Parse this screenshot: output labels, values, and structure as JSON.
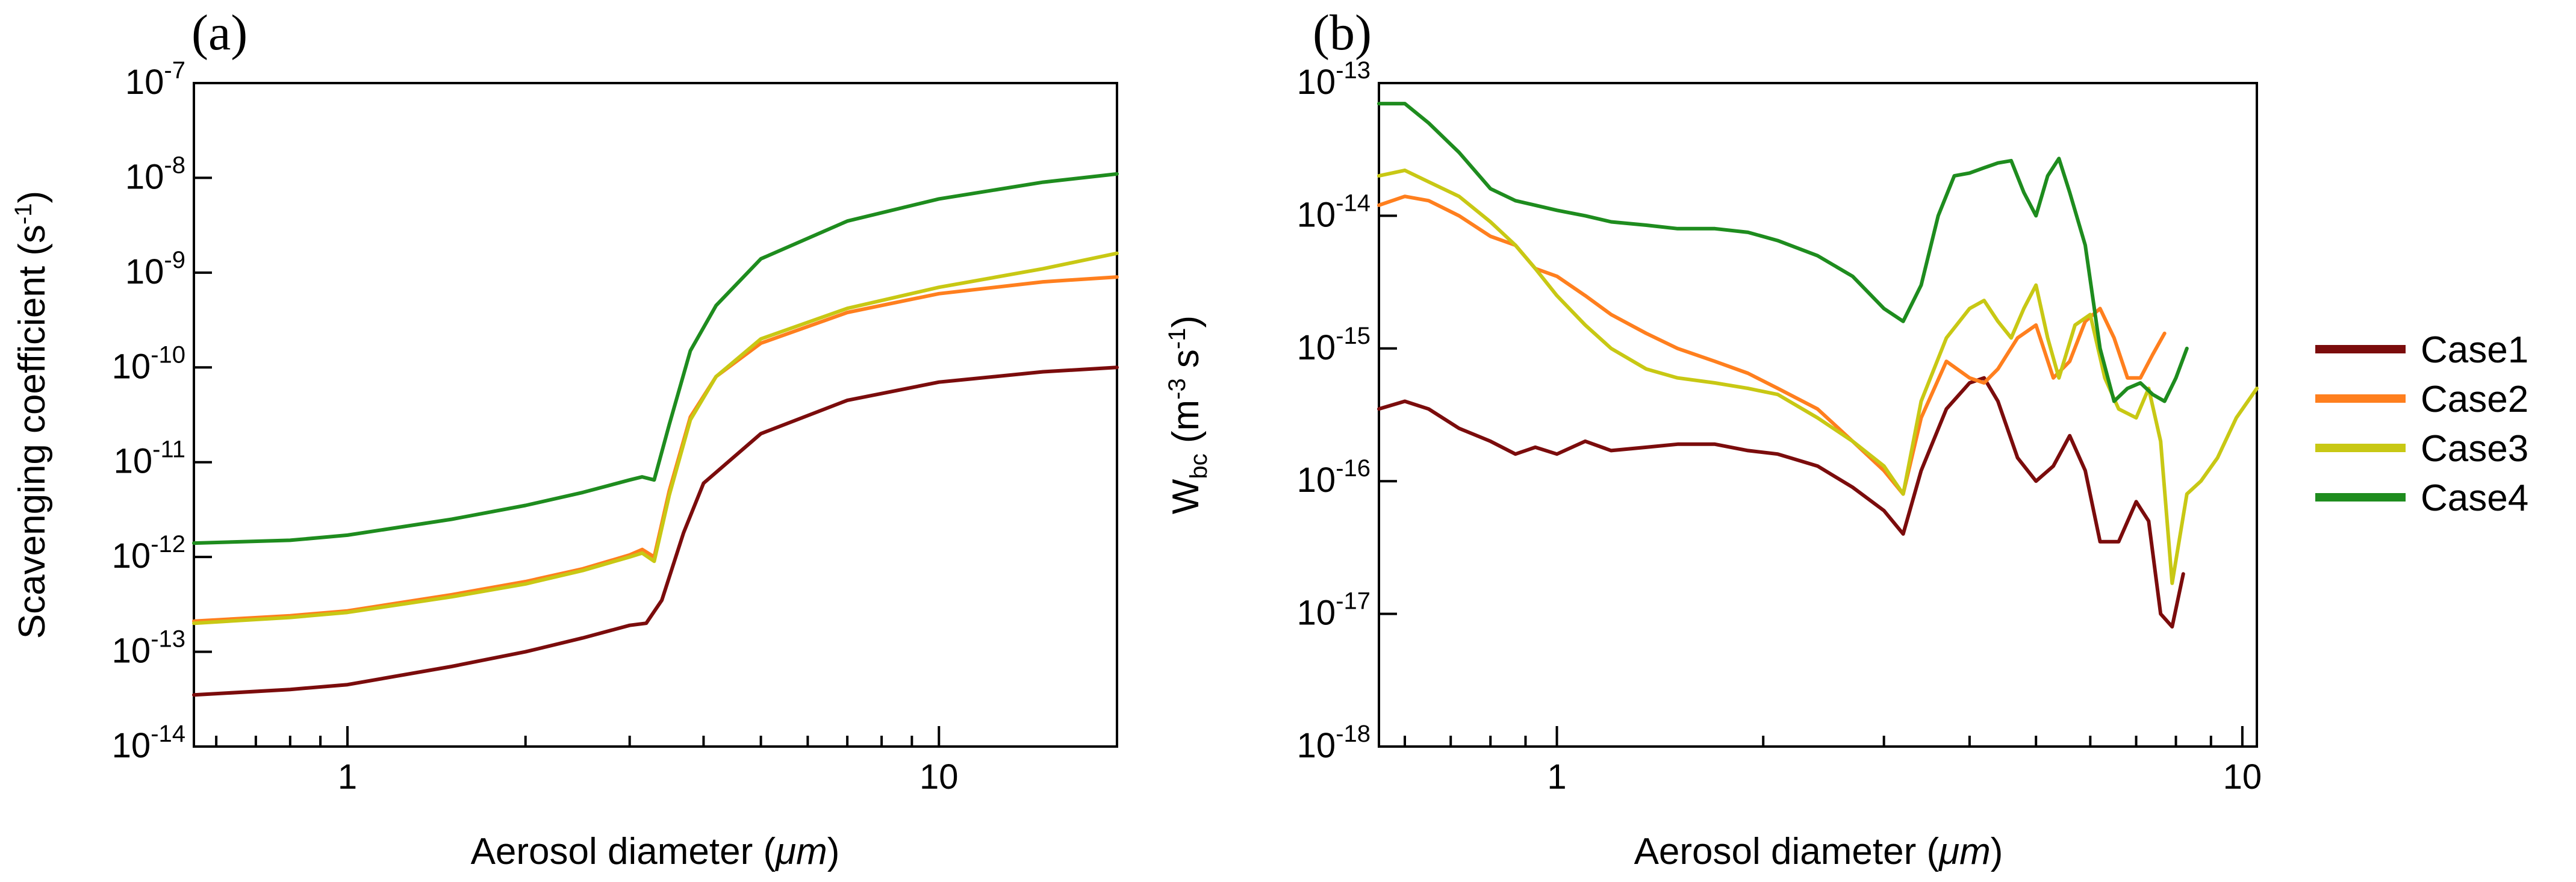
{
  "chart_data": [
    {
      "panel": "(a)",
      "type": "line",
      "xscale": "log",
      "yscale": "log",
      "xlim": [
        0.55,
        20
      ],
      "ylim": [
        1e-14,
        1e-07
      ],
      "xlabel_main": "Aerosol diameter (",
      "xlabel_unit": "μm",
      "xlabel_end": ")",
      "ylabel_main": "Scavenging coefficient (s",
      "ylabel_sup": "-1",
      "ylabel_end": ")",
      "x_ticks": [
        {
          "value": 1,
          "label": "1"
        },
        {
          "value": 10,
          "label": "10"
        }
      ],
      "y_ticks": [
        {
          "exp": -14,
          "base": "10",
          "sup": "-14"
        },
        {
          "exp": -13,
          "base": "10",
          "sup": "-13"
        },
        {
          "exp": -12,
          "base": "10",
          "sup": "-12"
        },
        {
          "exp": -11,
          "base": "10",
          "sup": "-11"
        },
        {
          "exp": -10,
          "base": "10",
          "sup": "-10"
        },
        {
          "exp": -9,
          "base": "10",
          "sup": "-9"
        },
        {
          "exp": -8,
          "base": "10",
          "sup": "-8"
        },
        {
          "exp": -7,
          "base": "10",
          "sup": "-7"
        }
      ],
      "series": [
        {
          "name": "Case1",
          "color": "#7b0c0c",
          "x": [
            0.55,
            0.8,
            1.0,
            1.5,
            2.0,
            2.5,
            3.0,
            3.2,
            3.4,
            3.7,
            4.0,
            5.0,
            7.0,
            10.0,
            15.0,
            20.0
          ],
          "y": [
            3.5e-14,
            4e-14,
            4.5e-14,
            7e-14,
            1e-13,
            1.4e-13,
            1.9e-13,
            2e-13,
            3.5e-13,
            1.8e-12,
            6e-12,
            2e-11,
            4.5e-11,
            7e-11,
            9e-11,
            1e-10
          ]
        },
        {
          "name": "Case2",
          "color": "#ff7f1e",
          "x": [
            0.55,
            0.8,
            1.0,
            1.5,
            2.0,
            2.5,
            3.0,
            3.15,
            3.3,
            3.5,
            3.8,
            4.2,
            5.0,
            7.0,
            10.0,
            15.0,
            20.0
          ],
          "y": [
            2.1e-13,
            2.4e-13,
            2.7e-13,
            4e-13,
            5.5e-13,
            7.5e-13,
            1.05e-12,
            1.2e-12,
            1e-12,
            5e-12,
            3e-11,
            8e-11,
            1.8e-10,
            3.8e-10,
            6e-10,
            8e-10,
            9e-10
          ]
        },
        {
          "name": "Case3",
          "color": "#c8c814",
          "x": [
            0.55,
            0.8,
            1.0,
            1.5,
            2.0,
            2.5,
            3.0,
            3.15,
            3.3,
            3.5,
            3.8,
            4.2,
            5.0,
            7.0,
            10.0,
            15.0,
            20.0
          ],
          "y": [
            2e-13,
            2.3e-13,
            2.6e-13,
            3.8e-13,
            5.2e-13,
            7.2e-13,
            1e-12,
            1.1e-12,
            9e-13,
            4.5e-12,
            2.8e-11,
            8e-11,
            2e-10,
            4.2e-10,
            7e-10,
            1.1e-09,
            1.6e-09
          ]
        },
        {
          "name": "Case4",
          "color": "#1e8c1e",
          "x": [
            0.55,
            0.8,
            1.0,
            1.5,
            2.0,
            2.5,
            3.0,
            3.15,
            3.3,
            3.5,
            3.8,
            4.2,
            5.0,
            7.0,
            10.0,
            15.0,
            20.0
          ],
          "y": [
            1.4e-12,
            1.5e-12,
            1.7e-12,
            2.5e-12,
            3.5e-12,
            4.8e-12,
            6.5e-12,
            7e-12,
            6.5e-12,
            2.5e-11,
            1.5e-10,
            4.5e-10,
            1.4e-09,
            3.5e-09,
            6e-09,
            9e-09,
            1.1e-08
          ]
        }
      ]
    },
    {
      "panel": "(b)",
      "type": "line",
      "xscale": "log",
      "yscale": "log",
      "xlim": [
        0.55,
        10.5
      ],
      "ylim": [
        1e-18,
        1e-13
      ],
      "xlabel_main": "Aerosol diameter (",
      "xlabel_unit": "μm",
      "xlabel_end": ")",
      "ylabel_main": "W",
      "ylabel_sub": "bc",
      "ylabel_mid": " (m",
      "ylabel_sup1": "-3",
      "ylabel_mid2": " s",
      "ylabel_sup2": "-1",
      "ylabel_end": ")",
      "x_ticks": [
        {
          "value": 1,
          "label": "1"
        },
        {
          "value": 10,
          "label": "10"
        }
      ],
      "y_ticks": [
        {
          "exp": -18,
          "base": "10",
          "sup": "-18"
        },
        {
          "exp": -17,
          "base": "10",
          "sup": "-17"
        },
        {
          "exp": -16,
          "base": "10",
          "sup": "-16"
        },
        {
          "exp": -15,
          "base": "10",
          "sup": "-15"
        },
        {
          "exp": -14,
          "base": "10",
          "sup": "-14"
        },
        {
          "exp": -13,
          "base": "10",
          "sup": "-13"
        }
      ],
      "series": [
        {
          "name": "Case1",
          "color": "#7b0c0c",
          "x": [
            0.55,
            0.6,
            0.65,
            0.72,
            0.8,
            0.87,
            0.93,
            1.0,
            1.1,
            1.2,
            1.35,
            1.5,
            1.7,
            1.9,
            2.1,
            2.4,
            2.7,
            3.0,
            3.2,
            3.4,
            3.7,
            4.0,
            4.2,
            4.4,
            4.7,
            5.0,
            5.3,
            5.6,
            5.9,
            6.2,
            6.6,
            7.0,
            7.3,
            7.6,
            7.9,
            8.2
          ],
          "y": [
            3.5e-16,
            4e-16,
            3.5e-16,
            2.5e-16,
            2e-16,
            1.6e-16,
            1.8e-16,
            1.6e-16,
            2e-16,
            1.7e-16,
            1.8e-16,
            1.9e-16,
            1.9e-16,
            1.7e-16,
            1.6e-16,
            1.3e-16,
            9e-17,
            6e-17,
            4e-17,
            1.2e-16,
            3.5e-16,
            5.5e-16,
            6e-16,
            4e-16,
            1.5e-16,
            1e-16,
            1.3e-16,
            2.2e-16,
            1.2e-16,
            3.5e-17,
            3.5e-17,
            7e-17,
            5e-17,
            1e-17,
            8e-18,
            2e-17
          ]
        },
        {
          "name": "Case2",
          "color": "#ff7f1e",
          "x": [
            0.55,
            0.6,
            0.65,
            0.72,
            0.8,
            0.87,
            0.93,
            1.0,
            1.1,
            1.2,
            1.35,
            1.5,
            1.7,
            1.9,
            2.1,
            2.4,
            2.7,
            3.0,
            3.2,
            3.4,
            3.7,
            4.0,
            4.2,
            4.4,
            4.7,
            5.0,
            5.3,
            5.6,
            5.9,
            6.2,
            6.5,
            6.8,
            7.1,
            7.4,
            7.7
          ],
          "y": [
            1.2e-14,
            1.4e-14,
            1.3e-14,
            1e-14,
            7e-15,
            6e-15,
            4e-15,
            3.5e-15,
            2.5e-15,
            1.8e-15,
            1.3e-15,
            1e-15,
            8e-16,
            6.5e-16,
            5e-16,
            3.5e-16,
            2e-16,
            1.2e-16,
            8e-17,
            3e-16,
            8e-16,
            6e-16,
            5.5e-16,
            7e-16,
            1.2e-15,
            1.5e-15,
            6e-16,
            8e-16,
            1.6e-15,
            2e-15,
            1.2e-15,
            6e-16,
            6e-16,
            9e-16,
            1.3e-15
          ]
        },
        {
          "name": "Case3",
          "color": "#c8c814",
          "x": [
            0.55,
            0.6,
            0.65,
            0.72,
            0.8,
            0.87,
            0.93,
            1.0,
            1.1,
            1.2,
            1.35,
            1.5,
            1.7,
            1.9,
            2.1,
            2.4,
            2.7,
            3.0,
            3.2,
            3.4,
            3.7,
            4.0,
            4.2,
            4.4,
            4.6,
            4.8,
            5.0,
            5.2,
            5.4,
            5.7,
            6.0,
            6.3,
            6.6,
            7.0,
            7.3,
            7.6,
            7.9,
            8.3,
            8.7,
            9.2,
            9.8,
            10.5
          ],
          "y": [
            2e-14,
            2.2e-14,
            1.8e-14,
            1.4e-14,
            9e-15,
            6e-15,
            4e-15,
            2.5e-15,
            1.5e-15,
            1e-15,
            7e-16,
            6e-16,
            5.5e-16,
            5e-16,
            4.5e-16,
            3e-16,
            2e-16,
            1.3e-16,
            8e-17,
            4e-16,
            1.2e-15,
            2e-15,
            2.3e-15,
            1.6e-15,
            1.2e-15,
            2e-15,
            3e-15,
            1.2e-15,
            6e-16,
            1.5e-15,
            1.8e-15,
            6e-16,
            3.5e-16,
            3e-16,
            5e-16,
            2e-16,
            1.7e-17,
            8e-17,
            1e-16,
            1.5e-16,
            3e-16,
            5e-16
          ]
        },
        {
          "name": "Case4",
          "color": "#1e8c1e",
          "x": [
            0.55,
            0.6,
            0.65,
            0.72,
            0.8,
            0.87,
            0.93,
            1.0,
            1.1,
            1.2,
            1.35,
            1.5,
            1.7,
            1.9,
            2.1,
            2.4,
            2.7,
            3.0,
            3.2,
            3.4,
            3.6,
            3.8,
            4.0,
            4.2,
            4.4,
            4.6,
            4.8,
            5.0,
            5.2,
            5.4,
            5.6,
            5.9,
            6.2,
            6.5,
            6.8,
            7.1,
            7.4,
            7.7,
            8.0,
            8.3
          ],
          "y": [
            7e-14,
            7e-14,
            5e-14,
            3e-14,
            1.6e-14,
            1.3e-14,
            1.2e-14,
            1.1e-14,
            1e-14,
            9e-15,
            8.5e-15,
            8e-15,
            8e-15,
            7.5e-15,
            6.5e-15,
            5e-15,
            3.5e-15,
            2e-15,
            1.6e-15,
            3e-15,
            1e-14,
            2e-14,
            2.1e-14,
            2.3e-14,
            2.5e-14,
            2.6e-14,
            1.5e-14,
            1e-14,
            2e-14,
            2.7e-14,
            1.5e-14,
            6e-15,
            1e-15,
            4e-16,
            5e-16,
            5.5e-16,
            4.5e-16,
            4e-16,
            6e-16,
            1e-15
          ]
        }
      ]
    }
  ],
  "legend": {
    "items": [
      {
        "label": "Case1",
        "color": "#7b0c0c"
      },
      {
        "label": "Case2",
        "color": "#ff7f1e"
      },
      {
        "label": "Case3",
        "color": "#c8c814"
      },
      {
        "label": "Case4",
        "color": "#1e8c1e"
      }
    ]
  }
}
